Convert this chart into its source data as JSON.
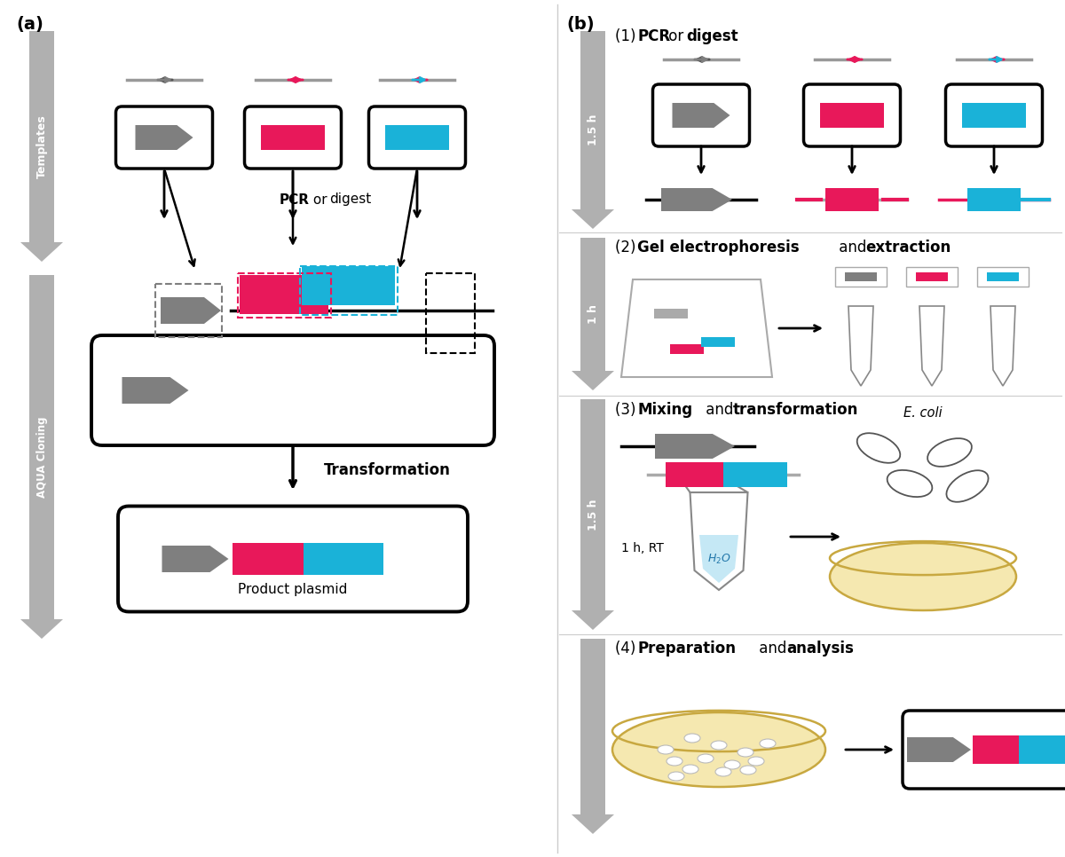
{
  "bg_color": "#ffffff",
  "gray_color": "#7f7f7f",
  "pink_color": "#E8185A",
  "blue_color": "#1AB2D8",
  "sidebar_gray": "#b0b0b0",
  "sidebar_text_color": "#ffffff",
  "label_a": "(a)",
  "label_b": "(b)",
  "step1_bold": [
    "PCR",
    "digest"
  ],
  "step2_bold": [
    "Gel electrophoresis",
    "extraction"
  ],
  "step3_bold": [
    "Mixing",
    "transformation"
  ],
  "step4_bold": [
    "Preparation",
    "analysis"
  ],
  "pcr_text_bold": "PCR",
  "pcr_text_norm": " or ",
  "pcr_text_bold2": "digest",
  "transformation_text": "Transformation",
  "product_plasmid_text": "Product plasmid",
  "ecoli_text": "E. coli",
  "time_text": "1 h, RT",
  "water_text": "H₂O"
}
